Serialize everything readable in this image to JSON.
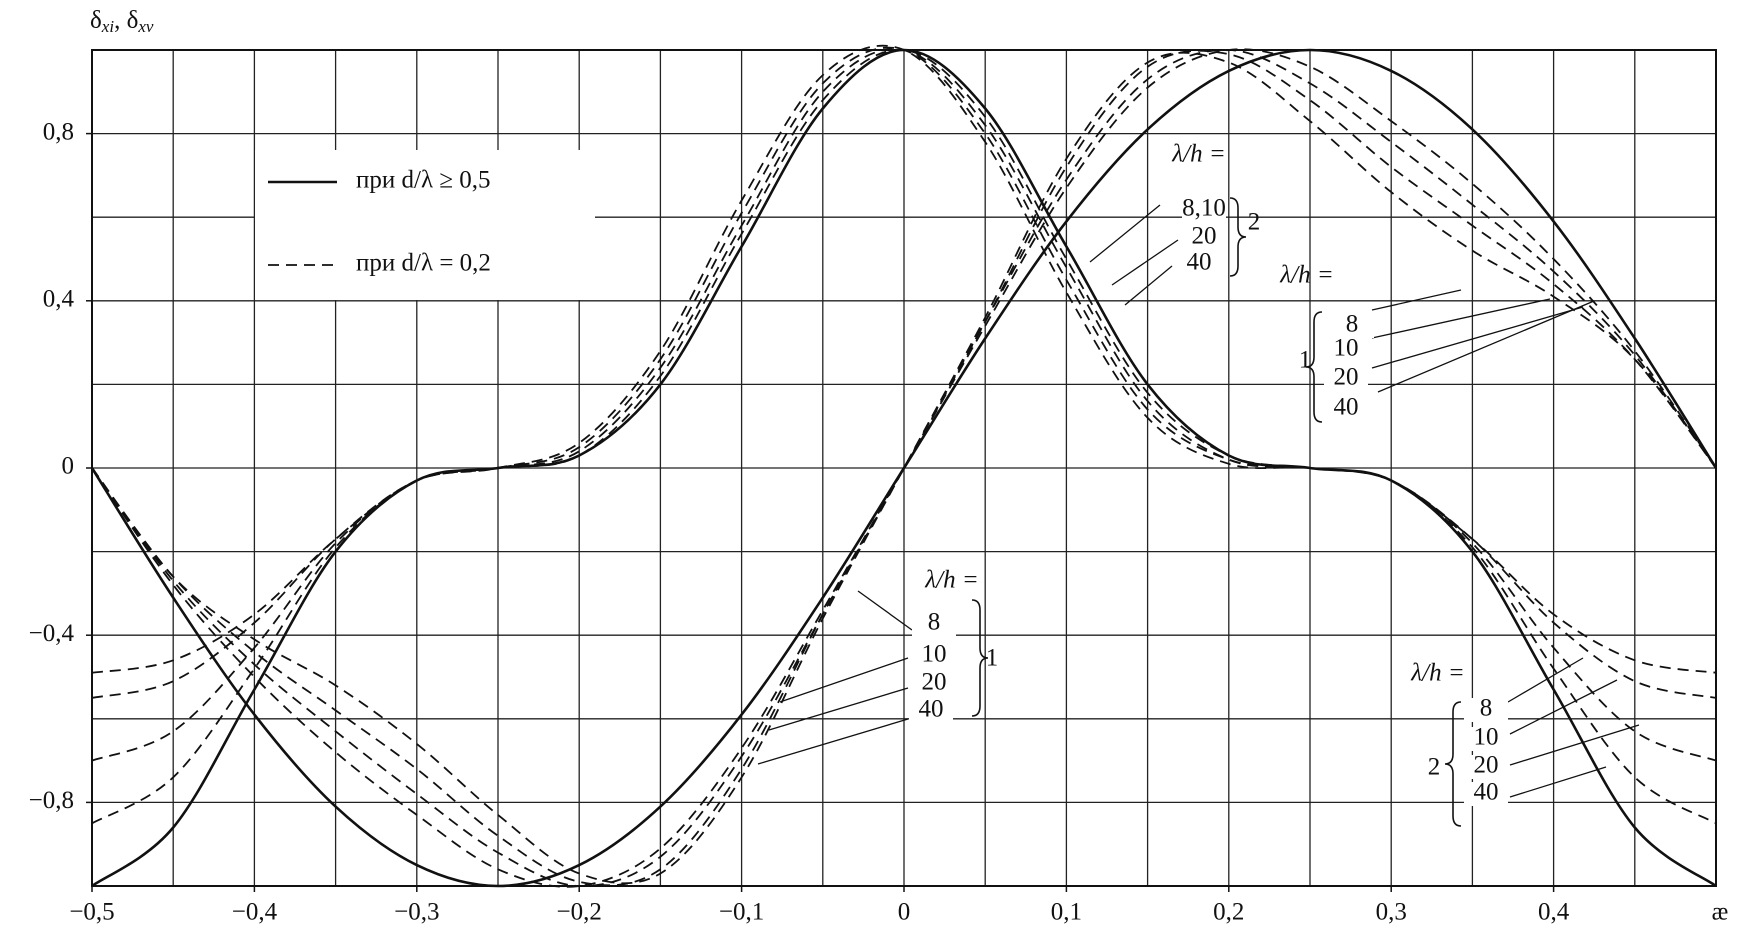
{
  "chart_data": {
    "type": "line",
    "y_label": [
      "δ",
      "xi",
      ", δ",
      "xv"
    ],
    "x_label": "æ",
    "xlim": [
      -0.5,
      0.5
    ],
    "ylim": [
      -1,
      1
    ],
    "xticks": [
      {
        "value": -0.5,
        "label": "−0,5"
      },
      {
        "value": -0.4,
        "label": "−0,4"
      },
      {
        "value": -0.3,
        "label": "−0,3"
      },
      {
        "value": -0.2,
        "label": "−0,2"
      },
      {
        "value": -0.1,
        "label": "−0,1"
      },
      0,
      {
        "value": 0.1,
        "label": "0,1"
      },
      {
        "value": 0.2,
        "label": "0,2"
      },
      {
        "value": 0.3,
        "label": "0,3"
      },
      {
        "value": 0.4,
        "label": "0,4"
      }
    ],
    "yticks": [
      {
        "value": -0.8,
        "label": "−0,8"
      },
      {
        "value": -0.4,
        "label": "−0,4"
      },
      0,
      {
        "value": 0.4,
        "label": "0,4"
      },
      {
        "value": 0.8,
        "label": "0,8"
      }
    ],
    "xgrid": [
      -0.45,
      -0.4,
      -0.35,
      -0.3,
      -0.25,
      -0.2,
      -0.15,
      -0.1,
      -0.05,
      0,
      0.05,
      0.1,
      0.15,
      0.2,
      0.25,
      0.3,
      0.35,
      0.4,
      0.45
    ],
    "ygrid": [
      -0.8,
      -0.6,
      -0.4,
      -0.2,
      0,
      0.2,
      0.4,
      0.6,
      0.8
    ],
    "grid": true,
    "x": [
      -0.5,
      -0.45,
      -0.4,
      -0.35,
      -0.3,
      -0.25,
      -0.2,
      -0.15,
      -0.1,
      -0.05,
      0,
      0.05,
      0.1,
      0.15,
      0.2,
      0.25,
      0.3,
      0.35,
      0.4,
      0.45,
      0.5
    ],
    "series": [
      {
        "color": "#111111",
        "dash": false,
        "values": [
          0,
          -0.31,
          -0.59,
          -0.81,
          -0.95,
          -1,
          -0.95,
          -0.81,
          -0.59,
          -0.31,
          0,
          0.31,
          0.59,
          0.81,
          0.95,
          1,
          0.95,
          0.81,
          0.59,
          0.31,
          0
        ]
      },
      {
        "color": "#111111",
        "dash": false,
        "values": [
          -1,
          -0.86,
          -0.53,
          -0.2,
          -0.03,
          0,
          0.03,
          0.2,
          0.53,
          0.86,
          1,
          0.86,
          0.53,
          0.2,
          0.03,
          0,
          -0.03,
          -0.2,
          -0.53,
          -0.86,
          -1
        ]
      },
      {
        "color": "#111111",
        "dash": true,
        "values": [
          0,
          -0.26,
          -0.41,
          -0.52,
          -0.66,
          -0.83,
          -0.97,
          -0.97,
          -0.74,
          -0.36,
          0,
          0.36,
          0.74,
          0.97,
          0.97,
          0.83,
          0.66,
          0.52,
          0.41,
          0.26,
          0
        ]
      },
      {
        "color": "#111111",
        "dash": true,
        "values": [
          0,
          -0.26,
          -0.44,
          -0.58,
          -0.72,
          -0.88,
          -0.99,
          -0.96,
          -0.72,
          -0.35,
          0,
          0.35,
          0.72,
          0.96,
          0.99,
          0.88,
          0.72,
          0.58,
          0.44,
          0.26,
          0
        ]
      },
      {
        "color": "#111111",
        "dash": true,
        "values": [
          0,
          -0.27,
          -0.47,
          -0.63,
          -0.78,
          -0.92,
          -1,
          -0.93,
          -0.69,
          -0.35,
          0,
          0.35,
          0.69,
          0.93,
          1,
          0.92,
          0.78,
          0.63,
          0.47,
          0.27,
          0
        ]
      },
      {
        "color": "#111111",
        "dash": true,
        "values": [
          0,
          -0.28,
          -0.5,
          -0.68,
          -0.83,
          -0.96,
          -1,
          -0.91,
          -0.67,
          -0.34,
          0,
          0.34,
          0.67,
          0.91,
          1,
          0.96,
          0.83,
          0.68,
          0.5,
          0.28,
          0
        ]
      },
      {
        "color": "#111111",
        "dash": true,
        "values": [
          -0.49,
          -0.46,
          -0.35,
          -0.17,
          -0.03,
          0,
          0.06,
          0.28,
          0.64,
          0.94,
          1,
          0.78,
          0.42,
          0.12,
          0.01,
          0,
          -0.03,
          -0.17,
          -0.35,
          -0.46,
          -0.49
        ]
      },
      {
        "color": "#111111",
        "dash": true,
        "values": [
          -0.55,
          -0.51,
          -0.37,
          -0.17,
          -0.03,
          0,
          0.05,
          0.26,
          0.61,
          0.92,
          1,
          0.8,
          0.45,
          0.14,
          0.02,
          0,
          -0.03,
          -0.17,
          -0.37,
          -0.51,
          -0.55
        ]
      },
      {
        "color": "#111111",
        "dash": true,
        "values": [
          -0.7,
          -0.63,
          -0.43,
          -0.18,
          -0.03,
          0,
          0.04,
          0.24,
          0.58,
          0.9,
          1,
          0.82,
          0.48,
          0.16,
          0.02,
          0,
          -0.03,
          -0.18,
          -0.43,
          -0.63,
          -0.7
        ]
      },
      {
        "color": "#111111",
        "dash": true,
        "values": [
          -0.85,
          -0.74,
          -0.48,
          -0.19,
          -0.03,
          0,
          0.03,
          0.22,
          0.56,
          0.88,
          1,
          0.84,
          0.5,
          0.18,
          0.03,
          0,
          -0.03,
          -0.19,
          -0.48,
          -0.74,
          -0.85
        ]
      }
    ],
    "legend": [
      {
        "label": "при d/λ ≥ 0,5",
        "dash": false
      },
      {
        "label": "при d/λ = 0,2",
        "dash": true
      }
    ],
    "annotations": [
      {
        "title": "λ/h =",
        "items": [
          "8,10",
          "20",
          "40"
        ],
        "group": "2"
      },
      {
        "title": "λ/h =",
        "items": [
          "8",
          "10",
          "20",
          "40"
        ],
        "group": "1"
      },
      {
        "title": "λ/h =",
        "items": [
          "8",
          "10",
          "20",
          "40"
        ],
        "group": "1"
      },
      {
        "title": "λ/h =",
        "items": [
          "8",
          "10",
          "20",
          "40"
        ],
        "group": "2"
      }
    ]
  }
}
